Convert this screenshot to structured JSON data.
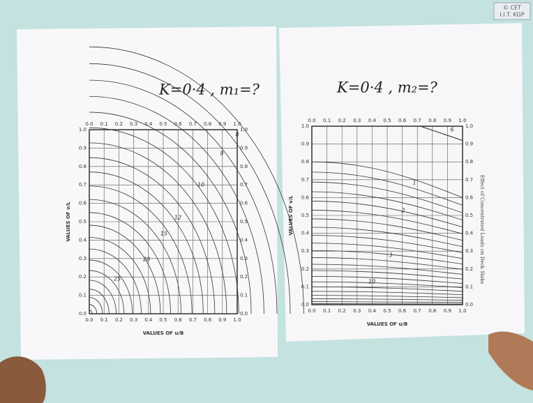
{
  "watermark": [
    "© CET",
    "I.I.T. KGP"
  ],
  "panels": [
    {
      "heading": "K=0·4 , m₁=?",
      "x_ticks": [
        "0.0",
        "0.1",
        "0.2",
        "0.3",
        "0.4",
        "0.5",
        "0.6",
        "0.7",
        "0.8",
        "0.9",
        "1.0"
      ],
      "y_ticks": [
        "0.0",
        "0.1",
        "0.2",
        "0.3",
        "0.4",
        "0.5",
        "0.6",
        "0.7",
        "0.8",
        "0.9",
        "1.0"
      ],
      "x_label": "VALUES OF u/B",
      "y_label": "VALUES OF v/L",
      "curve_labels": [
        "8",
        "9",
        "10",
        "12",
        "15",
        "20",
        "25"
      ]
    },
    {
      "heading": "K=0·4 , m₂=?",
      "x_ticks": [
        "0.0",
        "0.1",
        "0.2",
        "0.3",
        "0.4",
        "0.5",
        "0.6",
        "0.7",
        "0.8",
        "0.9",
        "1.0"
      ],
      "y_ticks": [
        "0.0",
        "0.1",
        "0.2",
        "0.3",
        "0.4",
        "0.5",
        "0.6",
        "0.7",
        "0.8",
        "0.9",
        "1.0"
      ],
      "x_label": "VALUES OF u/B",
      "y_label": "VALUES OF v/L",
      "curve_labels": [
        "6",
        "1",
        "2",
        "3",
        "10"
      ],
      "side_note": "Effect of Concentrated Loads on Deck Slabs"
    }
  ]
}
